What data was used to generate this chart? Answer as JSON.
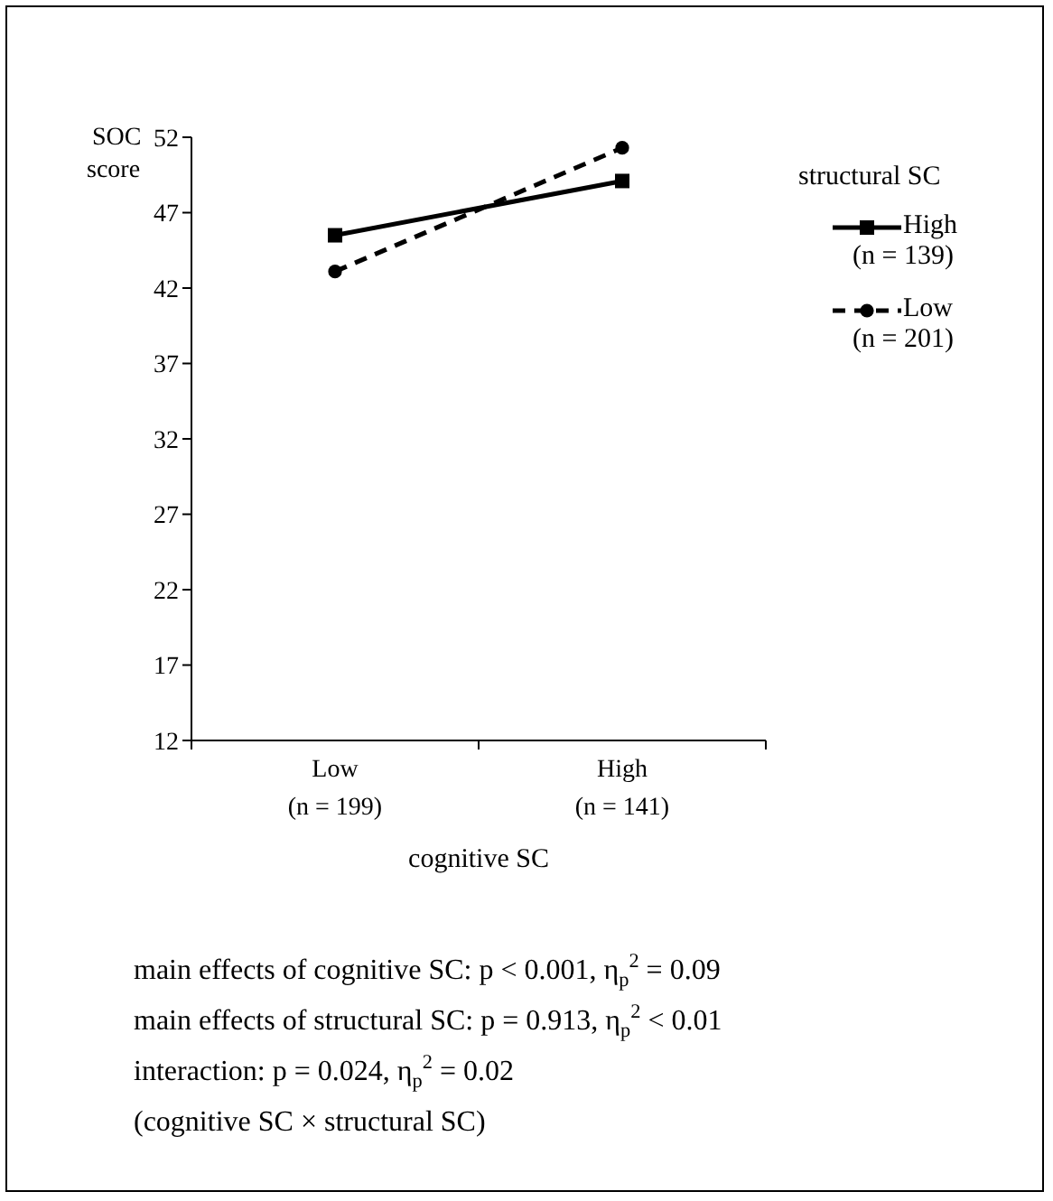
{
  "chart_data": {
    "type": "line",
    "ylabel": "SOC score",
    "xlabel": "cognitive SC",
    "legend_title": "structural SC",
    "categories": [
      "Low\n(n = 199)",
      "High\n(n = 141)"
    ],
    "series": [
      {
        "name": "High\n(n = 139)",
        "color": "#000000",
        "values": [
          45.5,
          49.1
        ],
        "marker": "square",
        "line_style": "solid"
      },
      {
        "name": "Low\n(n = 201)",
        "color": "#000000",
        "values": [
          43.1,
          51.3
        ],
        "marker": "circle",
        "line_style": "dashed"
      }
    ],
    "ylim": [
      12,
      52
    ],
    "yticks": [
      12,
      17,
      22,
      27,
      32,
      37,
      42,
      47,
      52
    ],
    "grid": false,
    "legend": "right",
    "annotations": [
      "main effects of cognitive SC: p < 0.001, η$_{p}$$^{2}$ = 0.09",
      "main effects of structural SC: p = 0.913, η$_{p}$$^{2}$ < 0.01",
      "interaction: p = 0.024, η$_{p}$$^{2}$ = 0.02",
      "(cognitive SC × structural SC)"
    ]
  }
}
